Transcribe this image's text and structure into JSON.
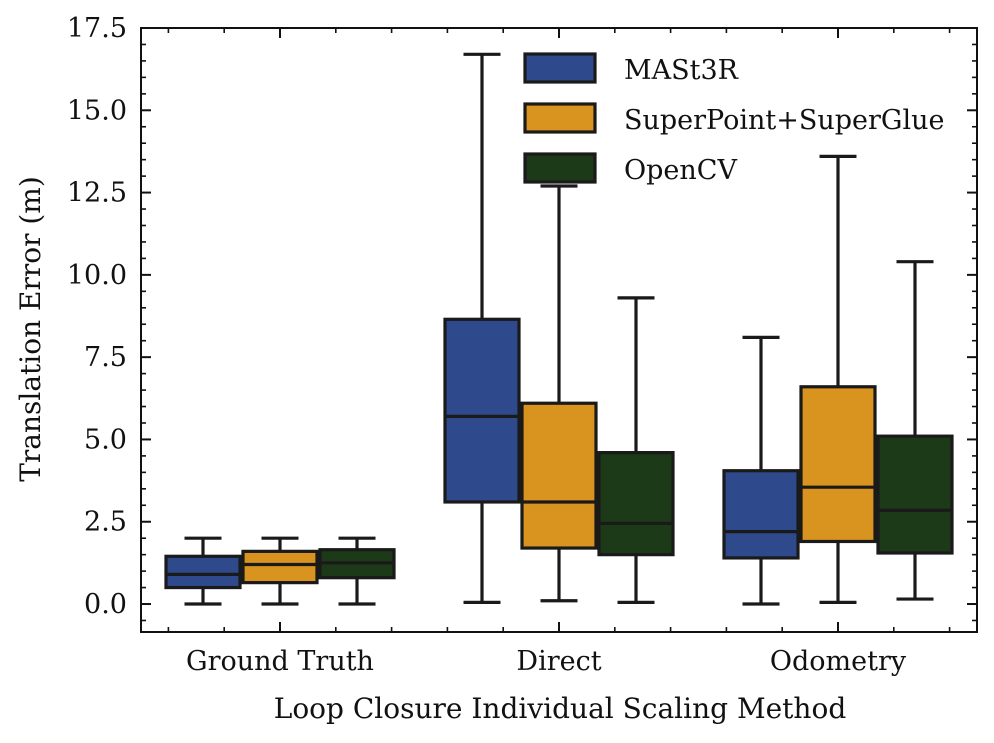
{
  "chart_data": {
    "type": "boxplot",
    "title": "",
    "xlabel": "Loop Closure Individual Scaling Method",
    "ylabel": "Translation Error (m)",
    "ylim": [
      -0.85,
      17.5
    ],
    "yticks": [
      0.0,
      2.5,
      5.0,
      7.5,
      10.0,
      12.5,
      15.0,
      17.5
    ],
    "ytick_labels": [
      "0.0",
      "2.5",
      "5.0",
      "7.5",
      "10.0",
      "12.5",
      "15.0",
      "17.5"
    ],
    "categories": [
      "Ground Truth",
      "Direct",
      "Odometry"
    ],
    "legend_position": "top-right",
    "series": [
      {
        "name": "MASt3R",
        "color": "#2E4A8C",
        "boxes": [
          {
            "whisker_low": 0.0,
            "q1": 0.5,
            "median": 0.9,
            "q3": 1.45,
            "whisker_high": 2.0
          },
          {
            "whisker_low": 0.05,
            "q1": 3.1,
            "median": 5.7,
            "q3": 8.65,
            "whisker_high": 16.7
          },
          {
            "whisker_low": 0.0,
            "q1": 1.4,
            "median": 2.2,
            "q3": 4.05,
            "whisker_high": 8.1
          }
        ]
      },
      {
        "name": "SuperPoint+SuperGlue",
        "color": "#D99420",
        "boxes": [
          {
            "whisker_low": 0.0,
            "q1": 0.65,
            "median": 1.2,
            "q3": 1.6,
            "whisker_high": 2.0
          },
          {
            "whisker_low": 0.1,
            "q1": 1.7,
            "median": 3.1,
            "q3": 6.1,
            "whisker_high": 12.7
          },
          {
            "whisker_low": 0.05,
            "q1": 1.9,
            "median": 3.55,
            "q3": 6.6,
            "whisker_high": 13.6
          }
        ]
      },
      {
        "name": "OpenCV",
        "color": "#1D3A18",
        "boxes": [
          {
            "whisker_low": 0.0,
            "q1": 0.8,
            "median": 1.25,
            "q3": 1.65,
            "whisker_high": 2.0
          },
          {
            "whisker_low": 0.05,
            "q1": 1.5,
            "median": 2.45,
            "q3": 4.6,
            "whisker_high": 9.3
          },
          {
            "whisker_low": 0.15,
            "q1": 1.55,
            "median": 2.85,
            "q3": 5.1,
            "whisker_high": 10.4
          }
        ]
      }
    ]
  }
}
